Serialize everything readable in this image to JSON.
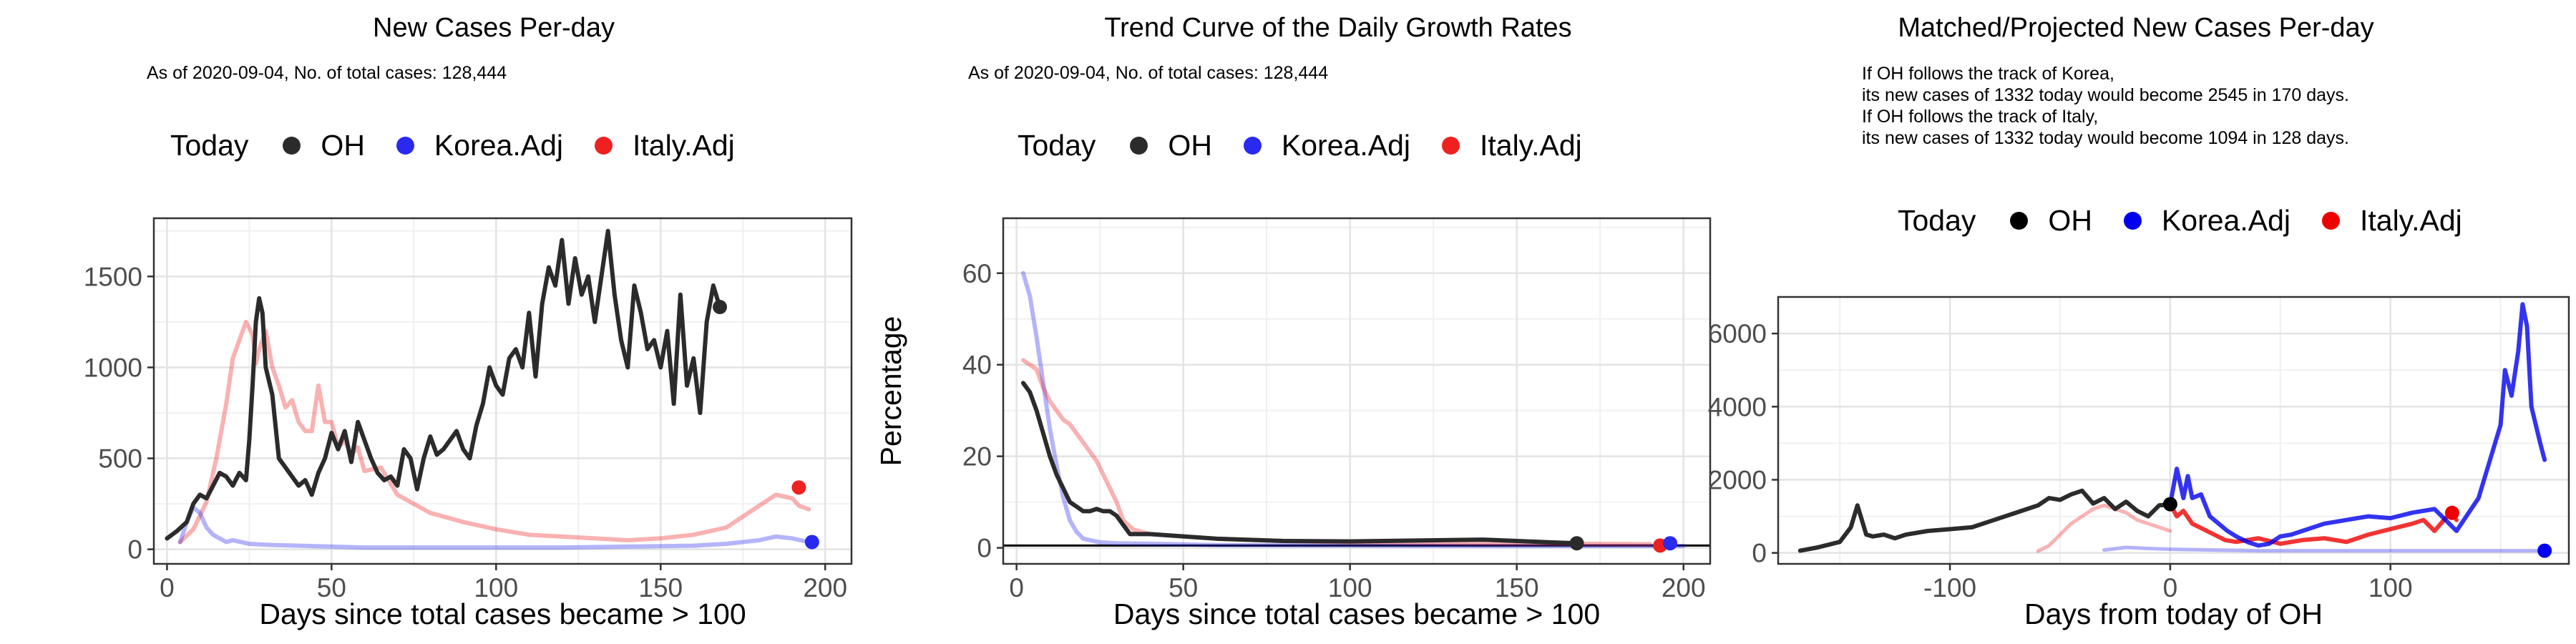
{
  "colors": {
    "OH": "#2b2b2b",
    "Korea.Adj": "#2929f0",
    "Italy.Adj": "#ef2020"
  },
  "chart_data": [
    {
      "type": "line",
      "title": "New Cases Per-day",
      "subtitle": "As of 2020-09-04, No. of total cases: 128,444",
      "xlabel": "Days since total cases became > 100",
      "ylabel": "",
      "xlim": [
        -4,
        208
      ],
      "ylim": [
        -80,
        1820
      ],
      "xticks": [
        0,
        50,
        100,
        150,
        200
      ],
      "yticks": [
        0,
        500,
        1000,
        1500
      ],
      "grid": true,
      "legend": {
        "title": "Today",
        "position": "top",
        "items": [
          "OH",
          "Korea.Adj",
          "Italy.Adj"
        ]
      },
      "series": [
        {
          "name": "Italy.Adj",
          "x": [
            4,
            8,
            12,
            15,
            18,
            20,
            22,
            24,
            26,
            27,
            28,
            30,
            32,
            34,
            36,
            38,
            40,
            42,
            44,
            46,
            48,
            50,
            52,
            54,
            56,
            58,
            60,
            65,
            70,
            75,
            80,
            90,
            100,
            110,
            120,
            130,
            140,
            150,
            160,
            170,
            175,
            180,
            185,
            190,
            192,
            195
          ],
          "y": [
            40,
            110,
            260,
            500,
            800,
            1050,
            1150,
            1250,
            1180,
            1020,
            1100,
            1200,
            1000,
            900,
            780,
            820,
            700,
            650,
            650,
            900,
            700,
            700,
            560,
            600,
            520,
            560,
            430,
            450,
            300,
            250,
            200,
            150,
            110,
            80,
            70,
            60,
            50,
            60,
            80,
            120,
            180,
            240,
            300,
            280,
            240,
            220
          ]
        },
        {
          "name": "Korea.Adj",
          "x": [
            4,
            6,
            8,
            10,
            12,
            14,
            16,
            18,
            20,
            25,
            30,
            40,
            50,
            60,
            80,
            100,
            120,
            140,
            160,
            170,
            180,
            185,
            190,
            195
          ],
          "y": [
            40,
            150,
            230,
            200,
            120,
            80,
            60,
            40,
            50,
            30,
            25,
            20,
            15,
            10,
            10,
            10,
            10,
            15,
            20,
            30,
            50,
            70,
            60,
            40
          ]
        },
        {
          "name": "OH",
          "x": [
            0,
            3,
            6,
            8,
            10,
            12,
            14,
            16,
            18,
            20,
            22,
            24,
            25,
            26,
            27,
            28,
            29,
            30,
            32,
            34,
            36,
            38,
            40,
            42,
            44,
            46,
            48,
            50,
            52,
            54,
            56,
            58,
            60,
            62,
            64,
            66,
            68,
            70,
            72,
            74,
            76,
            78,
            80,
            82,
            84,
            86,
            88,
            90,
            92,
            94,
            96,
            98,
            100,
            102,
            104,
            106,
            108,
            110,
            112,
            114,
            116,
            118,
            120,
            122,
            124,
            126,
            128,
            130,
            132,
            134,
            136,
            138,
            140,
            142,
            144,
            146,
            148,
            150,
            152,
            154,
            156,
            158,
            160,
            162,
            164,
            166,
            168
          ],
          "y": [
            60,
            100,
            150,
            250,
            300,
            280,
            350,
            420,
            400,
            350,
            420,
            380,
            600,
            900,
            1250,
            1380,
            1300,
            1000,
            850,
            500,
            450,
            400,
            350,
            380,
            300,
            420,
            500,
            640,
            550,
            650,
            480,
            700,
            600,
            500,
            420,
            380,
            400,
            350,
            550,
            500,
            330,
            500,
            620,
            520,
            550,
            600,
            650,
            550,
            500,
            680,
            800,
            1000,
            900,
            850,
            1050,
            1100,
            1000,
            1300,
            950,
            1350,
            1550,
            1450,
            1700,
            1350,
            1600,
            1400,
            1500,
            1250,
            1500,
            1750,
            1400,
            1150,
            1000,
            1450,
            1300,
            1100,
            1150,
            1000,
            1200,
            800,
            1400,
            900,
            1050,
            750,
            1250,
            1450,
            1330
          ]
        }
      ],
      "today": [
        {
          "name": "Italy.Adj",
          "x": 192,
          "y": 340
        },
        {
          "name": "Korea.Adj",
          "x": 196,
          "y": 40
        },
        {
          "name": "OH",
          "x": 168,
          "y": 1332
        }
      ]
    },
    {
      "type": "line",
      "title": "Trend Curve of the Daily Growth Rates",
      "subtitle": "As of 2020-09-04, No. of total cases: 128,444",
      "xlabel": "Days since total cases became > 100",
      "ylabel": "Percentage",
      "xlim": [
        -4,
        208
      ],
      "ylim": [
        -3.5,
        72
      ],
      "xticks": [
        0,
        50,
        100,
        150,
        200
      ],
      "yticks": [
        0,
        20,
        40,
        60
      ],
      "grid": true,
      "hline": 0.5,
      "legend": {
        "title": "Today",
        "position": "top",
        "items": [
          "OH",
          "Korea.Adj",
          "Italy.Adj"
        ]
      },
      "series": [
        {
          "name": "Korea.Adj",
          "x": [
            2,
            4,
            6,
            8,
            10,
            12,
            14,
            16,
            18,
            20,
            25,
            30,
            40,
            60,
            100,
            150,
            200
          ],
          "y": [
            60,
            55,
            46,
            36,
            26,
            18,
            11,
            6,
            3.5,
            2,
            1.2,
            1,
            0.9,
            0.6,
            0.5,
            0.4,
            0.4
          ]
        },
        {
          "name": "Italy.Adj",
          "x": [
            2,
            4,
            6,
            8,
            10,
            12,
            14,
            16,
            18,
            20,
            22,
            24,
            26,
            28,
            30,
            32,
            35,
            40,
            50,
            60,
            80,
            100,
            150,
            190
          ],
          "y": [
            41,
            40,
            39,
            35,
            32,
            30,
            28,
            27,
            25,
            23,
            21,
            19,
            16,
            13,
            10,
            6,
            4,
            3,
            2.5,
            2,
            1.5,
            1.2,
            1,
            0.8
          ]
        },
        {
          "name": "OH",
          "x": [
            2,
            4,
            6,
            8,
            10,
            12,
            14,
            16,
            18,
            20,
            22,
            24,
            26,
            28,
            30,
            32,
            34,
            36,
            40,
            50,
            60,
            80,
            100,
            120,
            140,
            160,
            168
          ],
          "y": [
            36,
            34,
            30,
            25,
            20,
            16,
            13,
            10,
            9,
            8,
            8,
            8.5,
            8,
            8,
            7,
            5,
            3,
            3,
            3,
            2.5,
            2,
            1.5,
            1.4,
            1.6,
            1.8,
            1.2,
            1
          ]
        }
      ],
      "today": [
        {
          "name": "OH",
          "x": 168,
          "y": 1
        },
        {
          "name": "Italy.Adj",
          "x": 193,
          "y": 0.5
        },
        {
          "name": "Korea.Adj",
          "x": 196,
          "y": 1
        }
      ]
    },
    {
      "type": "line",
      "title": "Matched/Projected New Cases Per-day",
      "annotation": [
        "If OH follows the track of Korea,",
        "its new cases of 1332 today would become 2545 in 170 days.",
        "If OH follows the track of Italy,",
        "its new cases of 1332 today would become 1094 in 128 days."
      ],
      "xlabel": "Days from today of OH",
      "ylabel": "",
      "xlim": [
        -178,
        181
      ],
      "ylim": [
        -300,
        7000
      ],
      "xticks": [
        -100,
        0,
        100
      ],
      "yticks": [
        0,
        2000,
        4000,
        6000
      ],
      "grid": true,
      "legend": {
        "title": "Today",
        "position": "top",
        "items": [
          "OH",
          "Korea.Adj",
          "Italy.Adj"
        ]
      },
      "series": [
        {
          "name": "Italy.Adj",
          "x": [
            -60,
            -55,
            -50,
            -45,
            -40,
            -35,
            -30,
            -25,
            -20,
            -15,
            -10,
            -5,
            0
          ],
          "y": [
            50,
            200,
            500,
            800,
            1000,
            1200,
            1300,
            1200,
            1100,
            900,
            800,
            700,
            600
          ]
        },
        {
          "name": "Korea.Adj",
          "x": [
            -30,
            -20,
            -10,
            0,
            40,
            80,
            120,
            150,
            160,
            170
          ],
          "y": [
            80,
            150,
            120,
            100,
            60,
            60,
            60,
            60,
            60,
            60
          ]
        },
        {
          "name": "OH",
          "x": [
            -168,
            -160,
            -150,
            -145,
            -142,
            -140,
            -138,
            -135,
            -130,
            -125,
            -120,
            -110,
            -100,
            -90,
            -80,
            -70,
            -60,
            -55,
            -50,
            -45,
            -40,
            -35,
            -30,
            -25,
            -20,
            -15,
            -10,
            -5,
            0
          ],
          "y": [
            60,
            150,
            300,
            700,
            1300,
            900,
            500,
            450,
            500,
            400,
            500,
            600,
            650,
            700,
            900,
            1100,
            1300,
            1500,
            1450,
            1600,
            1700,
            1350,
            1500,
            1200,
            1400,
            1150,
            1000,
            1300,
            1330
          ]
        },
        {
          "name": "Italy.Adj",
          "x": [
            0,
            3,
            6,
            10,
            15,
            20,
            25,
            30,
            40,
            50,
            60,
            70,
            80,
            90,
            100,
            110,
            115,
            120,
            125,
            128,
            130
          ],
          "y": [
            1330,
            1000,
            1150,
            800,
            650,
            500,
            350,
            300,
            400,
            250,
            350,
            400,
            300,
            500,
            650,
            800,
            900,
            600,
            950,
            1094,
            900
          ]
        },
        {
          "name": "Korea.Adj",
          "x": [
            0,
            3,
            6,
            8,
            10,
            14,
            18,
            22,
            26,
            30,
            35,
            40,
            45,
            50,
            55,
            60,
            70,
            80,
            90,
            100,
            110,
            120,
            130,
            140,
            145,
            150,
            152,
            155,
            158,
            160,
            162,
            164,
            166,
            168,
            170
          ],
          "y": [
            1330,
            2300,
            1500,
            2100,
            1500,
            1600,
            1000,
            800,
            600,
            450,
            300,
            200,
            250,
            450,
            500,
            600,
            800,
            900,
            1000,
            950,
            1100,
            1200,
            600,
            1500,
            2500,
            3500,
            5000,
            4300,
            5500,
            6800,
            6200,
            4000,
            3500,
            3000,
            2545
          ]
        }
      ],
      "today": [
        {
          "name": "Italy.Adj",
          "x": 128,
          "y": 1094
        },
        {
          "name": "OH",
          "x": 0,
          "y": 1332
        },
        {
          "name": "Korea.Adj",
          "x": 170,
          "y": 60
        }
      ]
    }
  ]
}
